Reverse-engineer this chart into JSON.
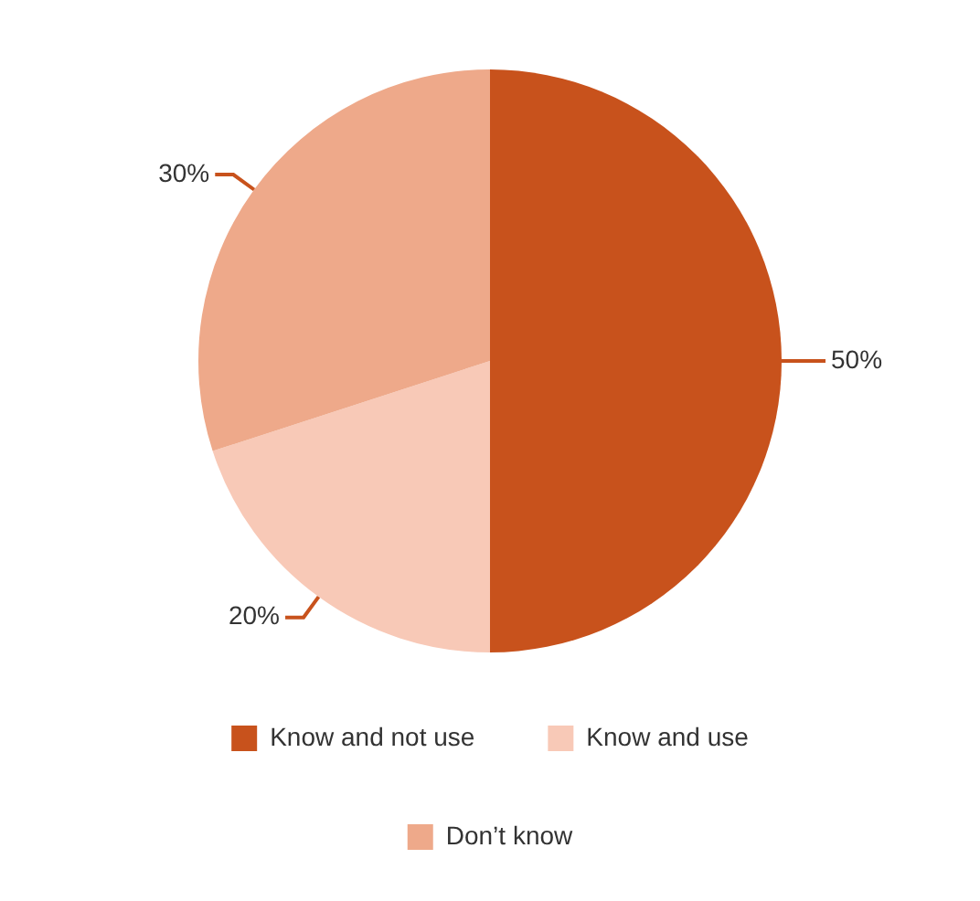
{
  "chart_data": {
    "type": "pie",
    "categories": [
      "Know and not use",
      "Know and use",
      "Don’t know"
    ],
    "values": [
      50,
      20,
      30
    ],
    "colors": [
      "#c8521c",
      "#f8c9b7",
      "#eea98a"
    ],
    "value_labels": [
      "50%",
      "20%",
      "30%"
    ],
    "legend": "bottom"
  }
}
